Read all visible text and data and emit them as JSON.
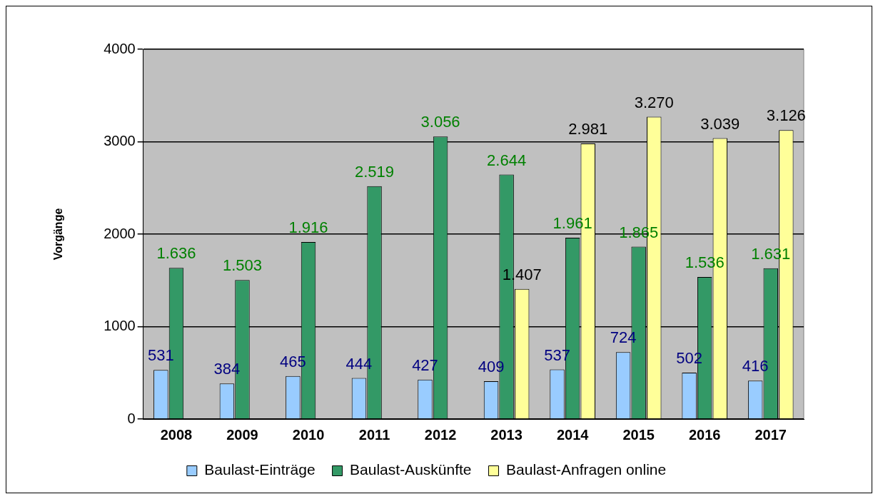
{
  "chart_data": {
    "type": "bar",
    "ylabel": "Vorgänge",
    "categories": [
      "2008",
      "2009",
      "2010",
      "2011",
      "2012",
      "2013",
      "2014",
      "2015",
      "2016",
      "2017"
    ],
    "series": [
      {
        "name": "Baulast-Einträge",
        "color": "#99ccff",
        "values": [
          531,
          384,
          465,
          444,
          427,
          409,
          537,
          724,
          502,
          416
        ],
        "value_labels": [
          "531",
          "384",
          "465",
          "444",
          "427",
          "409",
          "537",
          "724",
          "502",
          "416"
        ]
      },
      {
        "name": "Baulast-Auskünfte",
        "color": "#339966",
        "values": [
          1636,
          1503,
          1916,
          2519,
          3056,
          2644,
          1961,
          1865,
          1536,
          1631
        ],
        "value_labels": [
          "1.636",
          "1.503",
          "1.916",
          "2.519",
          "3.056",
          "2.644",
          "1.961",
          "1.865",
          "1.536",
          "1.631"
        ]
      },
      {
        "name": "Baulast-Anfragen online",
        "color": "#ffff99",
        "values": [
          null,
          null,
          null,
          null,
          null,
          1407,
          2981,
          3270,
          3039,
          3126
        ],
        "value_labels": [
          null,
          null,
          null,
          null,
          null,
          "1.407",
          "2.981",
          "3.270",
          "3.039",
          "3.126"
        ]
      }
    ],
    "ylim": [
      0,
      4000
    ],
    "yticks": [
      0,
      1000,
      2000,
      3000,
      4000
    ],
    "grid": "y",
    "legend": "bottom"
  }
}
